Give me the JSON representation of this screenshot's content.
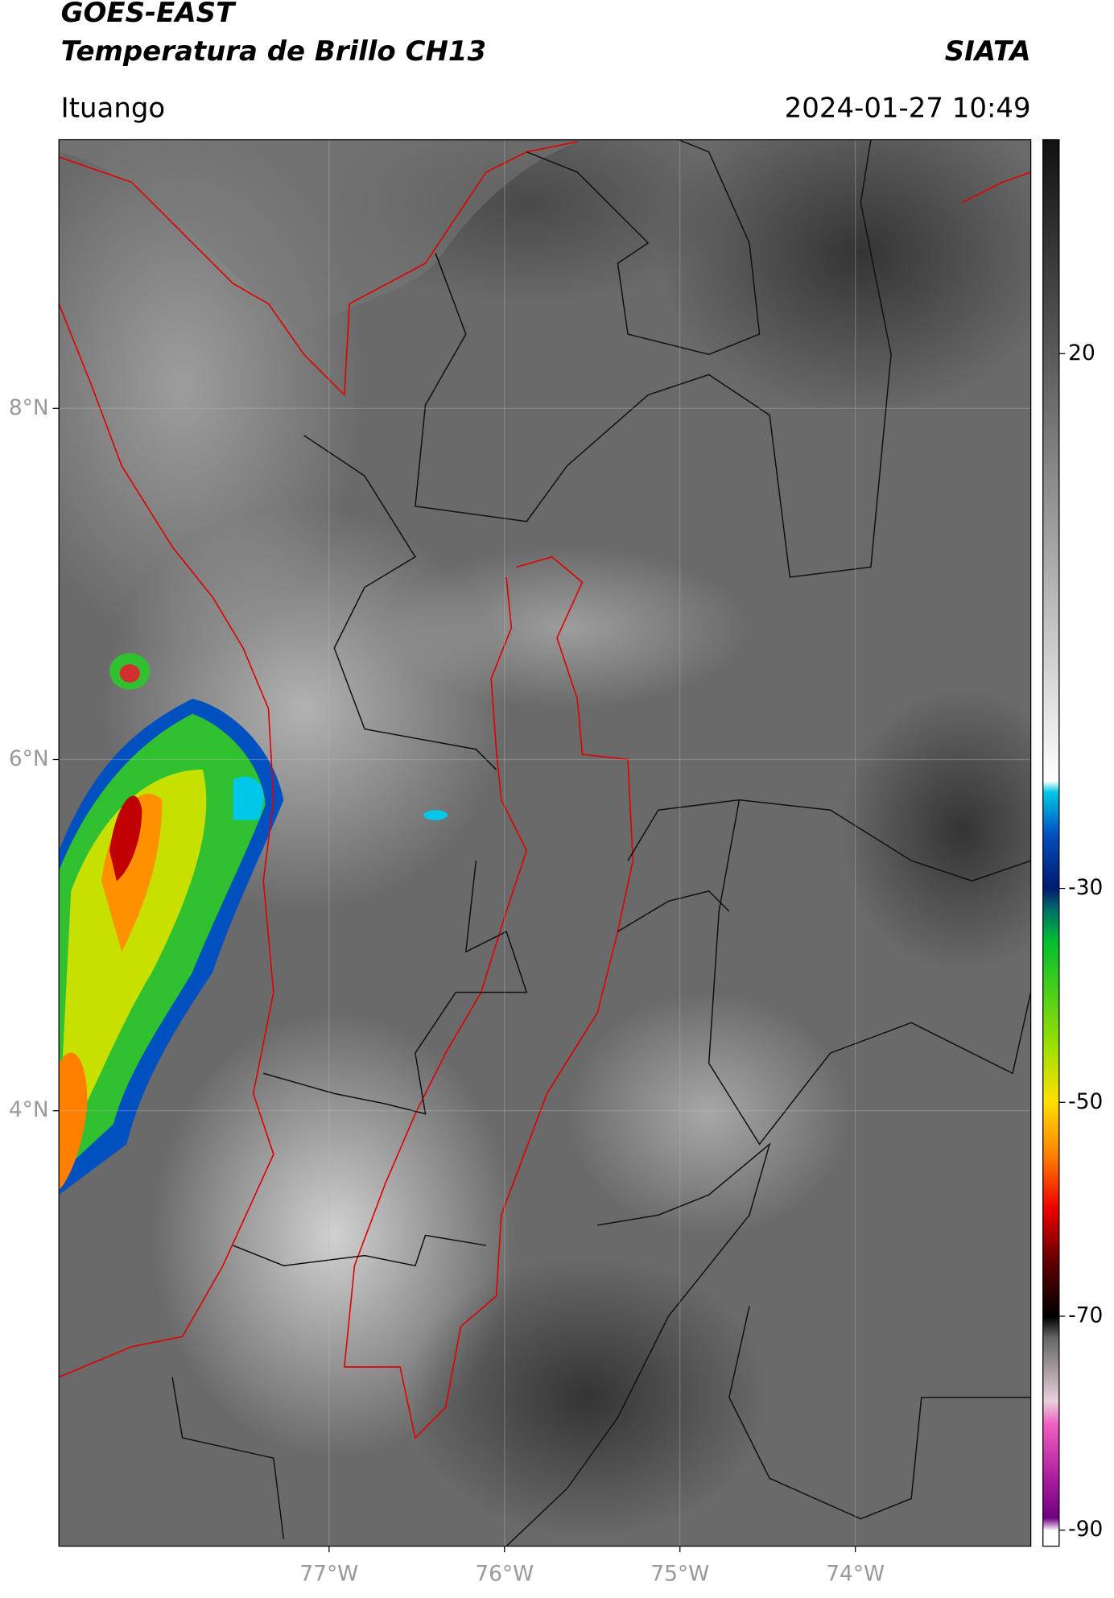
{
  "header": {
    "title_line1": "GOES-EAST",
    "title_line2": "Temperatura de Brillo CH13",
    "source": "SIATA",
    "location": "Ituango",
    "datetime": "2024-01-27 10:49"
  },
  "map": {
    "xlim": [
      -78.54,
      -73.0
    ],
    "ylim": [
      1.52,
      9.53
    ],
    "xticks": [
      {
        "value": -77,
        "label": "77°W"
      },
      {
        "value": -76,
        "label": "76°W"
      },
      {
        "value": -75,
        "label": "75°W"
      },
      {
        "value": -74,
        "label": "74°W"
      }
    ],
    "yticks": [
      {
        "value": 8,
        "label": "8°N"
      },
      {
        "value": 6,
        "label": "6°N"
      },
      {
        "value": 4,
        "label": "4°N"
      }
    ],
    "grid": true
  },
  "colorbar": {
    "lim": [
      -91.5,
      40
    ],
    "ticks": [
      20,
      -30,
      -50,
      -70,
      -90
    ]
  }
}
